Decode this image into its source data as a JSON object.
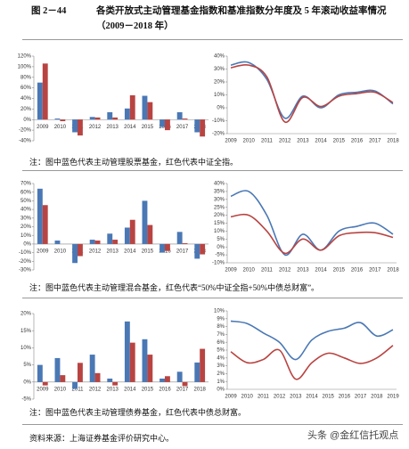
{
  "figure": {
    "label": "图 2－44",
    "title": "各类开放式主动管理基金指数和基准指数分年度及 5 年滚动收益率情况（2009－2018 年）"
  },
  "chart_data": [
    {
      "type": "bar",
      "categories": [
        "2009",
        "2010",
        "2011",
        "2012",
        "2013",
        "2014",
        "2015",
        "2016",
        "2017",
        "2018"
      ],
      "series": [
        {
          "color": "#4a78b5",
          "values": [
            70,
            2,
            -24,
            5,
            14,
            21,
            45,
            -14,
            14,
            -24
          ]
        },
        {
          "color": "#b84442",
          "values": [
            106,
            -3,
            -30,
            4,
            4,
            46,
            33,
            -20,
            2,
            -32
          ]
        }
      ],
      "ylim": [
        -40,
        120
      ],
      "yticks": [
        {
          "value": -40,
          "label": "-40%"
        },
        {
          "value": -20,
          "label": "-20%"
        },
        {
          "value": 0,
          "label": "0%"
        },
        {
          "value": 20,
          "label": "20%"
        },
        {
          "value": 40,
          "label": "40%"
        },
        {
          "value": 60,
          "label": "60%"
        },
        {
          "value": 80,
          "label": "80%"
        },
        {
          "value": 100,
          "label": "100%"
        },
        {
          "value": 120,
          "label": "120%"
        }
      ]
    },
    {
      "type": "line",
      "categories": [
        "2009",
        "2010",
        "2011",
        "2012",
        "2013",
        "2014",
        "2015",
        "2016",
        "2017",
        "2018"
      ],
      "series": [
        {
          "color": "#4a78b5",
          "values": [
            33,
            35,
            22,
            -8,
            9,
            0,
            10,
            12,
            13,
            3
          ]
        },
        {
          "color": "#b84442",
          "values": [
            31,
            33,
            24,
            -11,
            8,
            1,
            9,
            11,
            12,
            4
          ]
        }
      ],
      "ylim": [
        -20,
        40
      ],
      "yticks": [
        {
          "value": -20,
          "label": "-20%"
        },
        {
          "value": -10,
          "label": "-10%"
        },
        {
          "value": 0,
          "label": "0%"
        },
        {
          "value": 10,
          "label": "10%"
        },
        {
          "value": 20,
          "label": "20%"
        },
        {
          "value": 30,
          "label": "30%"
        },
        {
          "value": 40,
          "label": "40%"
        }
      ]
    },
    {
      "type": "bar",
      "categories": [
        "2009",
        "2010",
        "2011",
        "2012",
        "2013",
        "2014",
        "2015",
        "2016",
        "2017",
        "2018"
      ],
      "series": [
        {
          "color": "#4a78b5",
          "values": [
            64,
            4,
            -22,
            5,
            12,
            19,
            50,
            -10,
            14,
            -17
          ]
        },
        {
          "color": "#b84442",
          "values": [
            45,
            0,
            -14,
            4,
            5,
            28,
            22,
            -8,
            1,
            -12
          ]
        }
      ],
      "ylim": [
        -30,
        70
      ],
      "yticks": [
        {
          "value": -30,
          "label": "-30%"
        },
        {
          "value": -20,
          "label": "-20%"
        },
        {
          "value": -10,
          "label": "-10%"
        },
        {
          "value": 0,
          "label": "0%"
        },
        {
          "value": 10,
          "label": "10%"
        },
        {
          "value": 20,
          "label": "20%"
        },
        {
          "value": 30,
          "label": "30%"
        },
        {
          "value": 40,
          "label": "40%"
        },
        {
          "value": 50,
          "label": "50%"
        },
        {
          "value": 60,
          "label": "60%"
        },
        {
          "value": 70,
          "label": "70%"
        }
      ]
    },
    {
      "type": "line",
      "categories": [
        "2009",
        "2010",
        "2011",
        "2012",
        "2013",
        "2014",
        "2015",
        "2016",
        "2017",
        "2018"
      ],
      "series": [
        {
          "color": "#4a78b5",
          "values": [
            32,
            35,
            20,
            -5,
            8,
            -2,
            10,
            13,
            15,
            8
          ]
        },
        {
          "color": "#b84442",
          "values": [
            19,
            20,
            10,
            -4,
            5,
            -2,
            7,
            9,
            9,
            6
          ]
        }
      ],
      "ylim": [
        -10,
        40
      ],
      "yticks": [
        {
          "value": -10,
          "label": "-10%"
        },
        {
          "value": -5,
          "label": "-5%"
        },
        {
          "value": 0,
          "label": "0%"
        },
        {
          "value": 5,
          "label": "5%"
        },
        {
          "value": 10,
          "label": "10%"
        },
        {
          "value": 15,
          "label": "15%"
        },
        {
          "value": 20,
          "label": "20%"
        },
        {
          "value": 25,
          "label": "25%"
        },
        {
          "value": 30,
          "label": "30%"
        },
        {
          "value": 35,
          "label": "35%"
        },
        {
          "value": 40,
          "label": "40%"
        }
      ]
    },
    {
      "type": "bar",
      "categories": [
        "2009",
        "2010",
        "2011",
        "2012",
        "2013",
        "2014",
        "2015",
        "2016",
        "2017",
        "2018"
      ],
      "series": [
        {
          "color": "#4a78b5",
          "values": [
            5,
            7,
            -2,
            8,
            1,
            17.7,
            12.5,
            1,
            3,
            5.7
          ]
        },
        {
          "color": "#b84442",
          "values": [
            -1,
            2,
            5.6,
            2.6,
            -1,
            11.5,
            8,
            1.7,
            -1.2,
            9.7
          ]
        }
      ],
      "ylim": [
        -5,
        20
      ],
      "yticks": [
        {
          "value": -5,
          "label": "-5%"
        },
        {
          "value": 0,
          "label": "0%"
        },
        {
          "value": 5,
          "label": "5%"
        },
        {
          "value": 10,
          "label": "10%"
        },
        {
          "value": 15,
          "label": "15%"
        },
        {
          "value": 20,
          "label": "20%"
        }
      ]
    },
    {
      "type": "line",
      "categories": [
        "2009",
        "2010",
        "2011",
        "2012",
        "2013",
        "2014",
        "2015",
        "2016",
        "2017",
        "2018",
        "2019"
      ],
      "series": [
        {
          "color": "#4a78b5",
          "values": [
            8.7,
            8.4,
            7.2,
            6.0,
            3.8,
            6.3,
            7.4,
            7.8,
            8.5,
            6.8,
            7.6
          ]
        },
        {
          "color": "#b84442",
          "values": [
            4.8,
            3.4,
            3.8,
            5.0,
            1.3,
            3.4,
            4.6,
            4.0,
            3.3,
            4.0,
            5.6
          ]
        }
      ],
      "ylim": [
        0,
        10
      ],
      "yticks": [
        {
          "value": 0,
          "label": "0%"
        },
        {
          "value": 1,
          "label": "1%"
        },
        {
          "value": 2,
          "label": "2%"
        },
        {
          "value": 3,
          "label": "3%"
        },
        {
          "value": 4,
          "label": "4%"
        },
        {
          "value": 5,
          "label": "5%"
        },
        {
          "value": 6,
          "label": "6%"
        },
        {
          "value": 7,
          "label": "7%"
        },
        {
          "value": 8,
          "label": "8%"
        },
        {
          "value": 9,
          "label": "9%"
        },
        {
          "value": 10,
          "label": "10%"
        }
      ]
    }
  ],
  "notes": [
    "注：图中蓝色代表主动管理股票基金，红色代表中证全指。",
    "注：图中蓝色代表主动管理混合基金，红色代表“50%中证全指+50%中债总财富”。",
    "注：图中蓝色代表主动管理债券基金，红色代表中债总财富。"
  ],
  "source": "资料来源：上海证券基金评价研究中心。",
  "watermark": "头条 @金红信托观点"
}
